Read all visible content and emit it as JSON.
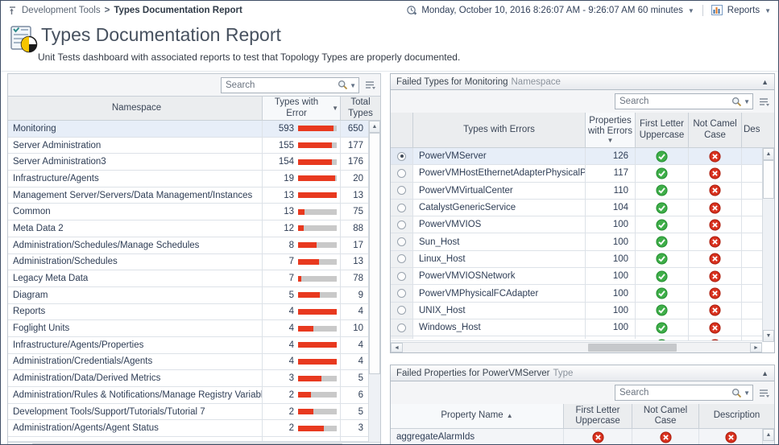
{
  "topbar": {
    "breadcrumb_parent": "Development Tools",
    "breadcrumb_sep": ">",
    "breadcrumb_current": "Types Documentation Report",
    "time_range": "Monday, October 10, 2016 8:26:07 AM - 9:26:07 AM 60 minutes",
    "reports_label": "Reports"
  },
  "header": {
    "title": "Types Documentation Report",
    "subtitle": "Unit Tests dashboard with associated reports to test that Topology Types are properly documented."
  },
  "namespace_table": {
    "search_placeholder": "Search",
    "col_namespace": "Namespace",
    "col_types_with_error": "Types with Error",
    "col_total_types": "Total Types",
    "sort": {
      "column": "Types with Error",
      "direction": "desc"
    },
    "rows": [
      {
        "namespace": "Monitoring",
        "types_with_error": 593,
        "total_types": 650,
        "selected": true
      },
      {
        "namespace": "Server Administration",
        "types_with_error": 155,
        "total_types": 177
      },
      {
        "namespace": "Server Administration3",
        "types_with_error": 154,
        "total_types": 176
      },
      {
        "namespace": "Infrastructure/Agents",
        "types_with_error": 19,
        "total_types": 20
      },
      {
        "namespace": "Management Server/Servers/Data Management/Instances",
        "types_with_error": 13,
        "total_types": 13
      },
      {
        "namespace": "Common",
        "types_with_error": 13,
        "total_types": 75
      },
      {
        "namespace": "Meta Data 2",
        "types_with_error": 12,
        "total_types": 88
      },
      {
        "namespace": "Administration/Schedules/Manage Schedules",
        "types_with_error": 8,
        "total_types": 17
      },
      {
        "namespace": "Administration/Schedules",
        "types_with_error": 7,
        "total_types": 13
      },
      {
        "namespace": "Legacy Meta Data",
        "types_with_error": 7,
        "total_types": 78
      },
      {
        "namespace": "Diagram",
        "types_with_error": 5,
        "total_types": 9
      },
      {
        "namespace": "Reports",
        "types_with_error": 4,
        "total_types": 4
      },
      {
        "namespace": "Foglight Units",
        "types_with_error": 4,
        "total_types": 10
      },
      {
        "namespace": "Infrastructure/Agents/Properties",
        "types_with_error": 4,
        "total_types": 4
      },
      {
        "namespace": "Administration/Credentials/Agents",
        "types_with_error": 4,
        "total_types": 4
      },
      {
        "namespace": "Administration/Data/Derived Metrics",
        "types_with_error": 3,
        "total_types": 5
      },
      {
        "namespace": "Administration/Rules & Notifications/Manage Registry Variables",
        "types_with_error": 2,
        "total_types": 6
      },
      {
        "namespace": "Development Tools/Support/Tutorials/Tutorial 7",
        "types_with_error": 2,
        "total_types": 5
      },
      {
        "namespace": "Administration/Agents/Agent Status",
        "types_with_error": 2,
        "total_types": 3
      }
    ]
  },
  "failed_types_table": {
    "title_main": "Failed Types for Monitoring",
    "title_suffix": "Namespace",
    "search_placeholder": "Search",
    "col_name": "Types with Errors",
    "col_props": "Properties with Errors",
    "col_first_letter": "First Letter Uppercase",
    "col_camel": "Not Camel Case",
    "col_desc": "Des",
    "sort": {
      "column": "Properties with Errors",
      "direction": "desc"
    },
    "rows": [
      {
        "name": "PowerVMServer",
        "properties_with_errors": 126,
        "first_letter_uppercase": "pass",
        "not_camel_case": "fail",
        "selected": true
      },
      {
        "name": "PowerVMHostEthernetAdapterPhysicalPort",
        "properties_with_errors": 117,
        "first_letter_uppercase": "pass",
        "not_camel_case": "fail"
      },
      {
        "name": "PowerVMVirtualCenter",
        "properties_with_errors": 110,
        "first_letter_uppercase": "pass",
        "not_camel_case": "fail"
      },
      {
        "name": "CatalystGenericService",
        "properties_with_errors": 104,
        "first_letter_uppercase": "pass",
        "not_camel_case": "fail"
      },
      {
        "name": "PowerVMVIOS",
        "properties_with_errors": 100,
        "first_letter_uppercase": "pass",
        "not_camel_case": "fail"
      },
      {
        "name": "Sun_Host",
        "properties_with_errors": 100,
        "first_letter_uppercase": "pass",
        "not_camel_case": "fail"
      },
      {
        "name": "Linux_Host",
        "properties_with_errors": 100,
        "first_letter_uppercase": "pass",
        "not_camel_case": "fail"
      },
      {
        "name": "PowerVMVIOSNetwork",
        "properties_with_errors": 100,
        "first_letter_uppercase": "pass",
        "not_camel_case": "fail"
      },
      {
        "name": "PowerVMPhysicalFCAdapter",
        "properties_with_errors": 100,
        "first_letter_uppercase": "pass",
        "not_camel_case": "fail"
      },
      {
        "name": "UNIX_Host",
        "properties_with_errors": 100,
        "first_letter_uppercase": "pass",
        "not_camel_case": "fail"
      },
      {
        "name": "Windows_Host",
        "properties_with_errors": 100,
        "first_letter_uppercase": "pass",
        "not_camel_case": "fail"
      }
    ],
    "partial_row": {
      "first_letter_uppercase": "pass",
      "not_camel_case": "fail"
    }
  },
  "failed_properties_table": {
    "title_main": "Failed Properties for PowerVMServer",
    "title_suffix": "Type",
    "search_placeholder": "Search",
    "col_name": "Property Name",
    "col_first_letter": "First Letter Uppercase",
    "col_camel": "Not Camel Case",
    "col_desc": "Description",
    "sort": {
      "column": "Property Name",
      "direction": "asc"
    },
    "rows": [
      {
        "name": "aggregateAlarmIds",
        "first_letter_uppercase": "fail",
        "not_camel_case": "fail",
        "description": "fail"
      }
    ]
  },
  "colors": {
    "bar_fill": "#e8391f",
    "bar_track": "#c9c9c9",
    "pass_green": "#3fae49",
    "fail_red": "#d8321f",
    "selected_row": "#e7eef8"
  }
}
